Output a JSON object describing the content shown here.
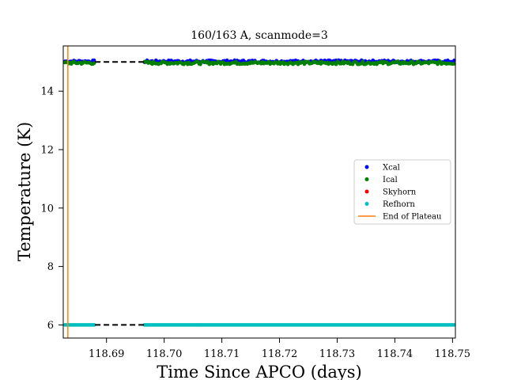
{
  "chart_data": {
    "type": "scatter",
    "title": "160/163 A, scanmode=3",
    "xlabel": "Time Since APCO (days)",
    "ylabel": "Temperature (K)",
    "xlim": [
      118.6825,
      118.7505
    ],
    "ylim": [
      5.55,
      15.55
    ],
    "xticks": [
      118.69,
      118.7,
      118.71,
      118.72,
      118.73,
      118.74,
      118.75
    ],
    "xtick_labels": [
      "118.69",
      "118.70",
      "118.71",
      "118.72",
      "118.73",
      "118.74",
      "118.75"
    ],
    "yticks": [
      6,
      8,
      10,
      12,
      14
    ],
    "ytick_labels": [
      "6",
      "8",
      "10",
      "12",
      "14"
    ],
    "grid": false,
    "legend_position": "center-right",
    "data_gap": [
      118.688,
      118.6966
    ],
    "series": [
      {
        "name": "Xcal",
        "color": "#0000ff",
        "marker": "dot",
        "base": 15.02,
        "jitter": 0.04,
        "segments": [
          [
            118.6828,
            118.688
          ],
          [
            118.6966,
            118.7503
          ]
        ]
      },
      {
        "name": "Ical",
        "color": "#008000",
        "marker": "dot",
        "base": 14.97,
        "jitter": 0.05,
        "segments": [
          [
            118.6828,
            118.688
          ],
          [
            118.6966,
            118.7503
          ]
        ]
      },
      {
        "name": "Skyhorn",
        "color": "#ff0000",
        "marker": "dot",
        "segments": []
      },
      {
        "name": "Refhorn",
        "color": "#00bfbf",
        "marker": "dot",
        "base": 6.0,
        "jitter": 0.0,
        "segments": [
          [
            118.6828,
            118.688
          ],
          [
            118.6966,
            118.7503
          ]
        ]
      }
    ],
    "dashed_lines": [
      {
        "y": 15.0,
        "x": [
          118.688,
          118.6966
        ],
        "color": "#000000"
      },
      {
        "y": 6.0,
        "x": [
          118.688,
          118.6966
        ],
        "color": "#000000"
      }
    ],
    "vlines": [
      {
        "name": "End of Plateau",
        "x": 118.6833,
        "color": "#ff7f0e"
      }
    ]
  }
}
